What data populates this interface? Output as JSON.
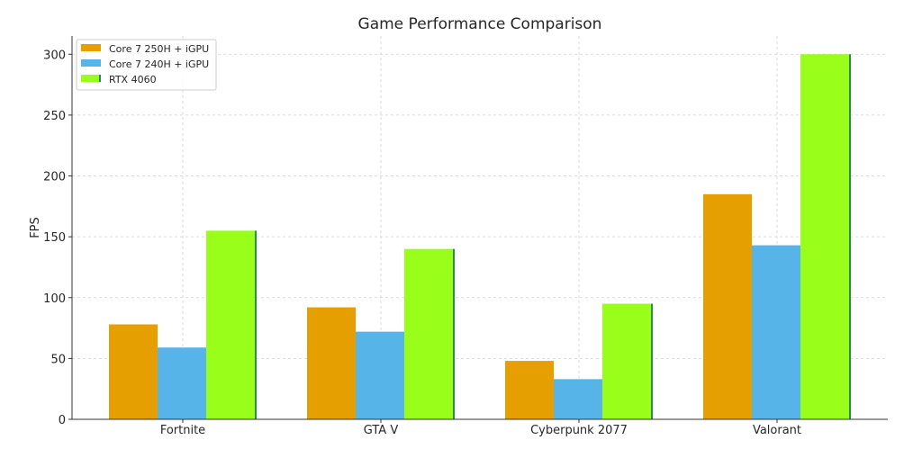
{
  "chart_data": {
    "type": "bar",
    "title": "Game Performance Comparison",
    "xlabel": "",
    "ylabel": "FPS",
    "categories": [
      "Fortnite",
      "GTA V",
      "Cyberpunk 2077",
      "Valorant"
    ],
    "series": [
      {
        "name": "Core 7 250H + iGPU",
        "values": [
          78,
          92,
          48,
          185
        ],
        "color": "#E69F00"
      },
      {
        "name": "Core 7 240H + iGPU",
        "values": [
          59,
          72,
          33,
          143
        ],
        "color": "#56B4E9"
      },
      {
        "name": "RTX 4060",
        "values": [
          155,
          140,
          95,
          300
        ],
        "color": "#99FF1A",
        "edge_color": "#2E8B57"
      }
    ],
    "ylim": [
      0,
      315
    ],
    "yticks": [
      0,
      50,
      100,
      150,
      200,
      250,
      300
    ],
    "grid": true,
    "legend_position": "top-left"
  }
}
